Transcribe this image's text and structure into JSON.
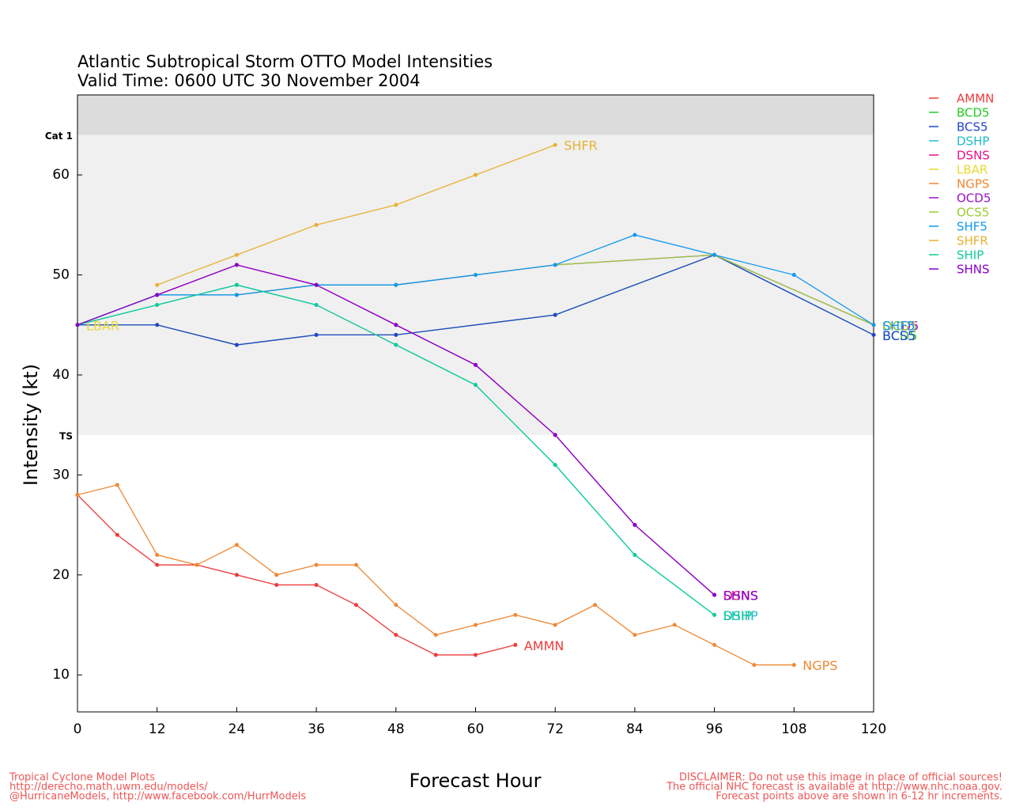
{
  "chart_data": {
    "type": "line",
    "title": "Atlantic Subtropical Storm OTTO Model Intensities",
    "subtitle": "Valid Time: 0600 UTC 30 November 2004",
    "xlabel": "Forecast Hour",
    "ylabel": "Intensity (kt)",
    "xlim": [
      0,
      120
    ],
    "xticks": [
      0,
      12,
      24,
      36,
      48,
      60,
      72,
      84,
      96,
      108,
      120
    ],
    "ylim": [
      6.3,
      68
    ],
    "yticks": [
      10,
      20,
      30,
      40,
      50,
      60
    ],
    "bands": [
      {
        "label": "Cat 1",
        "value": 64
      },
      {
        "label": "TS",
        "value": 34
      }
    ],
    "series": [
      {
        "name": "AMMN",
        "color": "#ee3b3b",
        "x": [
          0,
          6,
          12,
          18,
          24,
          30,
          36,
          42,
          48,
          54,
          60,
          66
        ],
        "values": [
          28,
          24,
          21,
          21,
          20,
          19,
          19,
          17,
          14,
          12,
          12,
          13
        ]
      },
      {
        "name": "BCD5",
        "color": "#22cc22",
        "x": [
          0,
          12,
          24,
          36,
          48,
          72,
          96,
          120
        ],
        "values": [
          45,
          45,
          43,
          44,
          44,
          46,
          52,
          44
        ]
      },
      {
        "name": "BCS5",
        "color": "#2244cc",
        "x": [
          0,
          12,
          24,
          36,
          48,
          72,
          96,
          120
        ],
        "values": [
          45,
          45,
          43,
          44,
          44,
          46,
          52,
          44
        ]
      },
      {
        "name": "DSHP",
        "color": "#22bbcc",
        "x": [
          0,
          12,
          24,
          36,
          48,
          60,
          72,
          84,
          96
        ],
        "values": [
          45,
          47,
          49,
          47,
          43,
          39,
          31,
          22,
          16
        ]
      },
      {
        "name": "DSNS",
        "color": "#ee1188",
        "x": [
          0,
          12,
          24,
          36,
          48,
          60,
          72,
          84,
          96
        ],
        "values": [
          45,
          48,
          51,
          49,
          45,
          41,
          34,
          25,
          18
        ]
      },
      {
        "name": "LBAR",
        "color": "#e8d830",
        "x": [
          0
        ],
        "values": [
          45
        ]
      },
      {
        "name": "NGPS",
        "color": "#ee8833",
        "x": [
          0,
          6,
          12,
          18,
          24,
          30,
          36,
          42,
          48,
          54,
          60,
          66,
          72,
          78,
          84,
          90,
          96,
          102,
          108
        ],
        "values": [
          28,
          29,
          22,
          21,
          23,
          20,
          21,
          21,
          17,
          14,
          15,
          16,
          15,
          17,
          14,
          15,
          13,
          11,
          11
        ]
      },
      {
        "name": "OCD5",
        "color": "#9911cc",
        "x": [
          0,
          12,
          24,
          36,
          48,
          72,
          96,
          120
        ],
        "values": [
          45,
          48,
          48,
          49,
          49,
          51,
          52,
          45
        ]
      },
      {
        "name": "OCS5",
        "color": "#99cc33",
        "x": [
          0,
          12,
          24,
          36,
          48,
          72,
          96,
          120
        ],
        "values": [
          45,
          48,
          48,
          49,
          49,
          51,
          52,
          45
        ]
      },
      {
        "name": "SHF5",
        "color": "#1199ee",
        "x": [
          0,
          12,
          24,
          36,
          48,
          60,
          72,
          84,
          96,
          108,
          120
        ],
        "values": [
          45,
          48,
          48,
          49,
          49,
          50,
          51,
          54,
          52,
          50,
          45
        ]
      },
      {
        "name": "SHFR",
        "color": "#e8b030",
        "x": [
          12,
          24,
          36,
          48,
          60,
          72
        ],
        "values": [
          49,
          52,
          55,
          57,
          60,
          63
        ]
      },
      {
        "name": "SHIP",
        "color": "#11cc99",
        "x": [
          0,
          12,
          24,
          36,
          48,
          60,
          72,
          84,
          96
        ],
        "values": [
          45,
          47,
          49,
          47,
          43,
          39,
          31,
          22,
          16
        ]
      },
      {
        "name": "SHNS",
        "color": "#8800cc",
        "x": [
          0,
          12,
          24,
          36,
          48,
          60,
          72,
          84,
          96
        ],
        "values": [
          45,
          48,
          51,
          49,
          45,
          41,
          34,
          25,
          18
        ]
      }
    ],
    "footer_left": [
      "Tropical Cyclone Model Plots",
      "http://derecho.math.uwm.edu/models/",
      "@HurricaneModels, http://www.facebook.com/HurrModels"
    ],
    "footer_right": [
      "DISCLAIMER: Do not use this image in place of official sources!",
      "The official NHC forecast is available at http://www.nhc.noaa.gov.",
      "Forecast points above are shown in 6-12 hr increments."
    ]
  }
}
